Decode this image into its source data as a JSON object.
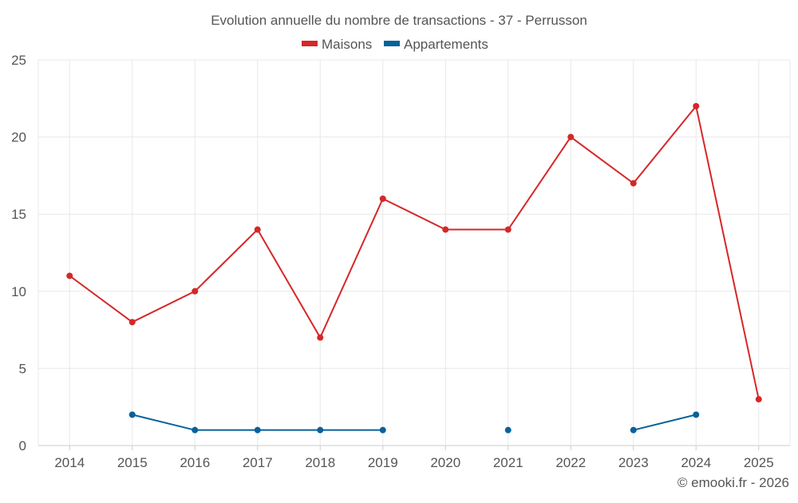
{
  "chart_data": {
    "type": "line",
    "title": "Evolution annuelle du nombre de transactions - 37 - Perrusson",
    "categories": [
      "2014",
      "2015",
      "2016",
      "2017",
      "2018",
      "2019",
      "2020",
      "2021",
      "2022",
      "2023",
      "2024",
      "2025"
    ],
    "series": [
      {
        "name": "Maisons",
        "color": "#d62728",
        "values": [
          11,
          8,
          10,
          14,
          7,
          16,
          14,
          14,
          20,
          17,
          22,
          3
        ]
      },
      {
        "name": "Appartements",
        "color": "#08619b",
        "values": [
          null,
          2,
          1,
          1,
          1,
          1,
          null,
          1,
          null,
          1,
          2,
          null
        ]
      }
    ],
    "ylim": [
      0,
      25
    ],
    "yticks": [
      0,
      5,
      10,
      15,
      20,
      25
    ],
    "xlabel": "",
    "ylabel": "",
    "grid": true,
    "legend": "top-center"
  },
  "footer": {
    "credit": "© emooki.fr - 2026"
  },
  "colors": {
    "axis_text": "#555555",
    "grid": "#e8e8e8",
    "axis_line": "#cccccc"
  }
}
